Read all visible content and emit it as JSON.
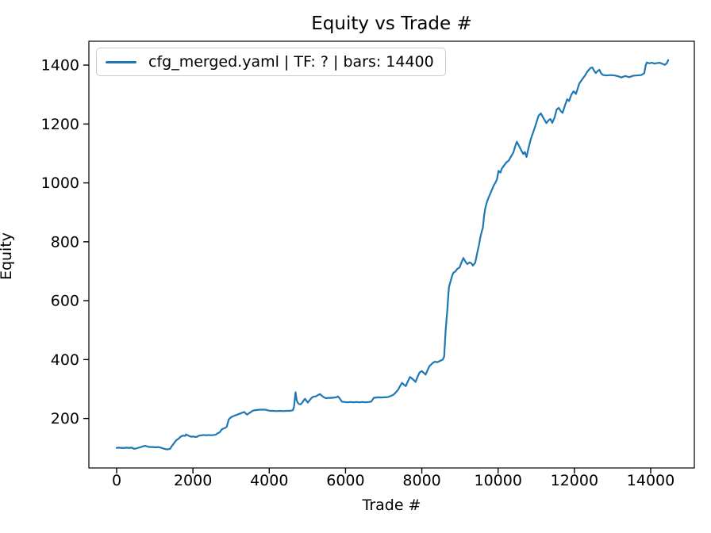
{
  "figure": {
    "title": "Equity vs Trade #",
    "xlabel": "Trade #",
    "ylabel": "Equity"
  },
  "chart_data": {
    "type": "line",
    "title": "Equity vs Trade #",
    "xlabel": "Trade #",
    "ylabel": "Equity",
    "grid": false,
    "legend_position": "upper left",
    "xlim": [
      -728,
      15144
    ],
    "ylim": [
      32,
      1481
    ],
    "xticks": [
      0,
      2000,
      4000,
      6000,
      8000,
      10000,
      12000,
      14000
    ],
    "yticks": [
      200,
      400,
      600,
      800,
      1000,
      1200,
      1400
    ],
    "axis_color": "#000000",
    "series": [
      {
        "name": "cfg_merged.yaml | TF: ? | bars: 14400",
        "color": "#1f77b4",
        "points": [
          [
            0,
            100
          ],
          [
            60,
            101
          ],
          [
            120,
            100
          ],
          [
            200,
            100
          ],
          [
            260,
            101
          ],
          [
            330,
            100
          ],
          [
            400,
            101
          ],
          [
            440,
            98
          ],
          [
            480,
            97
          ],
          [
            530,
            99
          ],
          [
            580,
            101
          ],
          [
            640,
            103
          ],
          [
            700,
            106
          ],
          [
            760,
            107
          ],
          [
            820,
            104
          ],
          [
            880,
            103
          ],
          [
            950,
            103
          ],
          [
            1030,
            102
          ],
          [
            1100,
            103
          ],
          [
            1160,
            101
          ],
          [
            1220,
            98
          ],
          [
            1280,
            96
          ],
          [
            1340,
            95
          ],
          [
            1400,
            97
          ],
          [
            1440,
            105
          ],
          [
            1480,
            112
          ],
          [
            1520,
            119
          ],
          [
            1560,
            126
          ],
          [
            1610,
            130
          ],
          [
            1660,
            136
          ],
          [
            1700,
            140
          ],
          [
            1750,
            142
          ],
          [
            1800,
            141
          ],
          [
            1820,
            146
          ],
          [
            1860,
            143
          ],
          [
            1910,
            140
          ],
          [
            1960,
            138
          ],
          [
            2010,
            139
          ],
          [
            2060,
            137
          ],
          [
            2110,
            138
          ],
          [
            2170,
            142
          ],
          [
            2230,
            143
          ],
          [
            2290,
            144
          ],
          [
            2350,
            143
          ],
          [
            2420,
            144
          ],
          [
            2480,
            143
          ],
          [
            2540,
            144
          ],
          [
            2600,
            145
          ],
          [
            2650,
            150
          ],
          [
            2700,
            153
          ],
          [
            2750,
            162
          ],
          [
            2800,
            166
          ],
          [
            2850,
            168
          ],
          [
            2890,
            173
          ],
          [
            2915,
            186
          ],
          [
            2940,
            197
          ],
          [
            2970,
            201
          ],
          [
            3010,
            205
          ],
          [
            3060,
            208
          ],
          [
            3120,
            211
          ],
          [
            3180,
            214
          ],
          [
            3240,
            217
          ],
          [
            3300,
            220
          ],
          [
            3350,
            222
          ],
          [
            3390,
            216
          ],
          [
            3420,
            213
          ],
          [
            3460,
            217
          ],
          [
            3510,
            221
          ],
          [
            3560,
            226
          ],
          [
            3620,
            228
          ],
          [
            3690,
            229
          ],
          [
            3750,
            230
          ],
          [
            3820,
            230
          ],
          [
            3890,
            230
          ],
          [
            3950,
            228
          ],
          [
            4020,
            226
          ],
          [
            4100,
            226
          ],
          [
            4190,
            225
          ],
          [
            4280,
            226
          ],
          [
            4370,
            225
          ],
          [
            4460,
            226
          ],
          [
            4550,
            226
          ],
          [
            4620,
            228
          ],
          [
            4650,
            240
          ],
          [
            4670,
            265
          ],
          [
            4690,
            289
          ],
          [
            4705,
            275
          ],
          [
            4720,
            262
          ],
          [
            4745,
            254
          ],
          [
            4780,
            249
          ],
          [
            4820,
            248
          ],
          [
            4860,
            253
          ],
          [
            4900,
            261
          ],
          [
            4940,
            267
          ],
          [
            4975,
            260
          ],
          [
            5010,
            254
          ],
          [
            5060,
            262
          ],
          [
            5110,
            270
          ],
          [
            5160,
            274
          ],
          [
            5220,
            275
          ],
          [
            5270,
            279
          ],
          [
            5330,
            283
          ],
          [
            5380,
            277
          ],
          [
            5430,
            272
          ],
          [
            5490,
            269
          ],
          [
            5560,
            270
          ],
          [
            5630,
            270
          ],
          [
            5700,
            271
          ],
          [
            5760,
            272
          ],
          [
            5800,
            275
          ],
          [
            5835,
            270
          ],
          [
            5870,
            264
          ],
          [
            5905,
            257
          ],
          [
            5970,
            256
          ],
          [
            6050,
            255
          ],
          [
            6130,
            256
          ],
          [
            6210,
            255
          ],
          [
            6290,
            256
          ],
          [
            6370,
            255
          ],
          [
            6450,
            256
          ],
          [
            6530,
            255
          ],
          [
            6610,
            256
          ],
          [
            6670,
            257
          ],
          [
            6705,
            263
          ],
          [
            6740,
            270
          ],
          [
            6800,
            271
          ],
          [
            6870,
            272
          ],
          [
            6930,
            271
          ],
          [
            7000,
            272
          ],
          [
            7070,
            272
          ],
          [
            7140,
            274
          ],
          [
            7200,
            277
          ],
          [
            7260,
            281
          ],
          [
            7320,
            289
          ],
          [
            7380,
            298
          ],
          [
            7430,
            310
          ],
          [
            7480,
            321
          ],
          [
            7530,
            315
          ],
          [
            7580,
            310
          ],
          [
            7630,
            325
          ],
          [
            7690,
            341
          ],
          [
            7740,
            336
          ],
          [
            7800,
            329
          ],
          [
            7835,
            324
          ],
          [
            7890,
            342
          ],
          [
            7940,
            356
          ],
          [
            8000,
            361
          ],
          [
            8050,
            355
          ],
          [
            8100,
            349
          ],
          [
            8150,
            364
          ],
          [
            8200,
            378
          ],
          [
            8250,
            384
          ],
          [
            8300,
            390
          ],
          [
            8350,
            393
          ],
          [
            8400,
            391
          ],
          [
            8450,
            394
          ],
          [
            8500,
            397
          ],
          [
            8550,
            400
          ],
          [
            8585,
            410
          ],
          [
            8605,
            455
          ],
          [
            8625,
            500
          ],
          [
            8650,
            540
          ],
          [
            8670,
            570
          ],
          [
            8690,
            610
          ],
          [
            8710,
            645
          ],
          [
            8740,
            660
          ],
          [
            8770,
            673
          ],
          [
            8800,
            687
          ],
          [
            8830,
            695
          ],
          [
            8885,
            700
          ],
          [
            8930,
            708
          ],
          [
            8990,
            713
          ],
          [
            9040,
            730
          ],
          [
            9090,
            745
          ],
          [
            9140,
            733
          ],
          [
            9195,
            724
          ],
          [
            9250,
            730
          ],
          [
            9300,
            727
          ],
          [
            9340,
            719
          ],
          [
            9400,
            729
          ],
          [
            9430,
            748
          ],
          [
            9460,
            767
          ],
          [
            9500,
            790
          ],
          [
            9530,
            813
          ],
          [
            9570,
            834
          ],
          [
            9600,
            848
          ],
          [
            9630,
            885
          ],
          [
            9660,
            912
          ],
          [
            9700,
            932
          ],
          [
            9740,
            947
          ],
          [
            9790,
            962
          ],
          [
            9830,
            974
          ],
          [
            9880,
            990
          ],
          [
            9930,
            1001
          ],
          [
            9970,
            1012
          ],
          [
            10010,
            1041
          ],
          [
            10060,
            1035
          ],
          [
            10100,
            1049
          ],
          [
            10160,
            1060
          ],
          [
            10220,
            1070
          ],
          [
            10280,
            1076
          ],
          [
            10340,
            1090
          ],
          [
            10400,
            1103
          ],
          [
            10450,
            1125
          ],
          [
            10490,
            1140
          ],
          [
            10540,
            1128
          ],
          [
            10590,
            1115
          ],
          [
            10660,
            1098
          ],
          [
            10700,
            1105
          ],
          [
            10745,
            1088
          ],
          [
            10800,
            1120
          ],
          [
            10860,
            1150
          ],
          [
            10920,
            1172
          ],
          [
            10980,
            1195
          ],
          [
            11060,
            1228
          ],
          [
            11120,
            1236
          ],
          [
            11180,
            1222
          ],
          [
            11265,
            1203
          ],
          [
            11320,
            1212
          ],
          [
            11370,
            1217
          ],
          [
            11420,
            1204
          ],
          [
            11480,
            1222
          ],
          [
            11535,
            1249
          ],
          [
            11590,
            1255
          ],
          [
            11640,
            1244
          ],
          [
            11690,
            1238
          ],
          [
            11750,
            1262
          ],
          [
            11810,
            1284
          ],
          [
            11860,
            1278
          ],
          [
            11920,
            1300
          ],
          [
            11980,
            1311
          ],
          [
            12040,
            1302
          ],
          [
            12130,
            1338
          ],
          [
            12200,
            1351
          ],
          [
            12280,
            1365
          ],
          [
            12340,
            1378
          ],
          [
            12420,
            1390
          ],
          [
            12470,
            1392
          ],
          [
            12520,
            1380
          ],
          [
            12560,
            1373
          ],
          [
            12610,
            1380
          ],
          [
            12655,
            1384
          ],
          [
            12700,
            1372
          ],
          [
            12760,
            1366
          ],
          [
            12850,
            1365
          ],
          [
            12950,
            1366
          ],
          [
            13050,
            1365
          ],
          [
            13150,
            1362
          ],
          [
            13230,
            1358
          ],
          [
            13330,
            1363
          ],
          [
            13440,
            1359
          ],
          [
            13540,
            1364
          ],
          [
            13650,
            1365
          ],
          [
            13750,
            1366
          ],
          [
            13830,
            1372
          ],
          [
            13870,
            1400
          ],
          [
            13900,
            1409
          ],
          [
            13960,
            1406
          ],
          [
            14030,
            1408
          ],
          [
            14100,
            1405
          ],
          [
            14170,
            1407
          ],
          [
            14240,
            1408
          ],
          [
            14310,
            1404
          ],
          [
            14370,
            1401
          ],
          [
            14420,
            1406
          ],
          [
            14460,
            1417
          ]
        ]
      }
    ]
  }
}
